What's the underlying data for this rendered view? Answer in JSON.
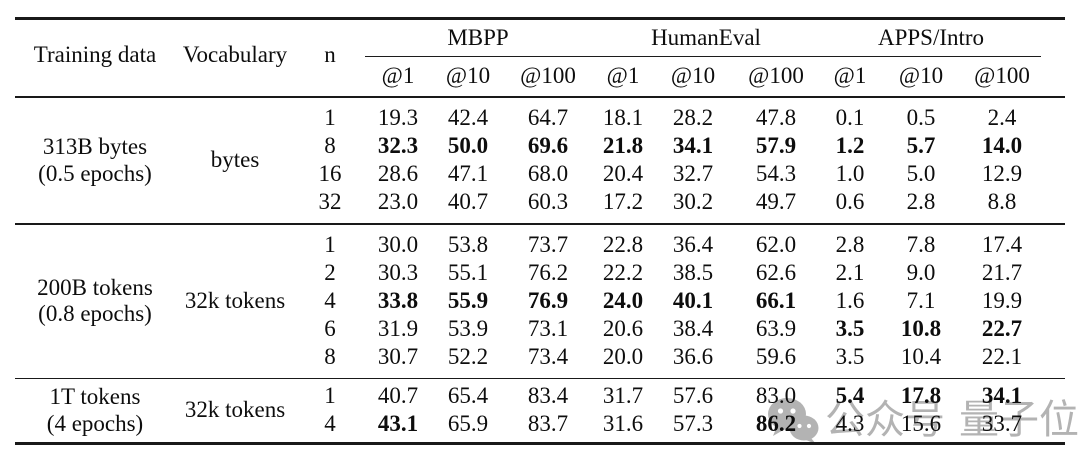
{
  "table": {
    "header": {
      "training_data": "Training data",
      "vocabulary": "Vocabulary",
      "n": "n",
      "benchmarks": [
        {
          "name": "MBPP",
          "metrics": [
            "@1",
            "@10",
            "@100"
          ]
        },
        {
          "name": "HumanEval",
          "metrics": [
            "@1",
            "@10",
            "@100"
          ]
        },
        {
          "name": "APPS/Intro",
          "metrics": [
            "@1",
            "@10",
            "@100"
          ]
        }
      ]
    },
    "groups": [
      {
        "training_data": [
          "313B bytes",
          "(0.5 epochs)"
        ],
        "vocabulary": "bytes",
        "rows": [
          {
            "n": "1",
            "values": [
              "19.3",
              "42.4",
              "64.7",
              "18.1",
              "28.2",
              "47.8",
              "0.1",
              "0.5",
              "2.4"
            ],
            "bold": []
          },
          {
            "n": "8",
            "values": [
              "32.3",
              "50.0",
              "69.6",
              "21.8",
              "34.1",
              "57.9",
              "1.2",
              "5.7",
              "14.0"
            ],
            "bold": [
              0,
              1,
              2,
              3,
              4,
              5,
              6,
              7,
              8
            ]
          },
          {
            "n": "16",
            "values": [
              "28.6",
              "47.1",
              "68.0",
              "20.4",
              "32.7",
              "54.3",
              "1.0",
              "5.0",
              "12.9"
            ],
            "bold": []
          },
          {
            "n": "32",
            "values": [
              "23.0",
              "40.7",
              "60.3",
              "17.2",
              "30.2",
              "49.7",
              "0.6",
              "2.8",
              "8.8"
            ],
            "bold": []
          }
        ]
      },
      {
        "training_data": [
          "200B tokens",
          "(0.8 epochs)"
        ],
        "vocabulary": "32k tokens",
        "rows": [
          {
            "n": "1",
            "values": [
              "30.0",
              "53.8",
              "73.7",
              "22.8",
              "36.4",
              "62.0",
              "2.8",
              "7.8",
              "17.4"
            ],
            "bold": []
          },
          {
            "n": "2",
            "values": [
              "30.3",
              "55.1",
              "76.2",
              "22.2",
              "38.5",
              "62.6",
              "2.1",
              "9.0",
              "21.7"
            ],
            "bold": []
          },
          {
            "n": "4",
            "values": [
              "33.8",
              "55.9",
              "76.9",
              "24.0",
              "40.1",
              "66.1",
              "1.6",
              "7.1",
              "19.9"
            ],
            "bold": [
              0,
              1,
              2,
              3,
              4,
              5
            ]
          },
          {
            "n": "6",
            "values": [
              "31.9",
              "53.9",
              "73.1",
              "20.6",
              "38.4",
              "63.9",
              "3.5",
              "10.8",
              "22.7"
            ],
            "bold": [
              6,
              7,
              8
            ]
          },
          {
            "n": "8",
            "values": [
              "30.7",
              "52.2",
              "73.4",
              "20.0",
              "36.6",
              "59.6",
              "3.5",
              "10.4",
              "22.1"
            ],
            "bold": []
          }
        ]
      },
      {
        "training_data": [
          "1T tokens",
          "(4 epochs)"
        ],
        "vocabulary": "32k tokens",
        "rows": [
          {
            "n": "1",
            "values": [
              "40.7",
              "65.4",
              "83.4",
              "31.7",
              "57.6",
              "83.0",
              "5.4",
              "17.8",
              "34.1"
            ],
            "bold": [
              6,
              7,
              8
            ]
          },
          {
            "n": "4",
            "values": [
              "43.1",
              "65.9",
              "83.7",
              "31.6",
              "57.3",
              "86.2",
              "4.3",
              "15.6",
              "33.7"
            ],
            "bold": [
              0,
              5
            ]
          }
        ]
      }
    ]
  },
  "watermark": {
    "icon": "wechat-icon",
    "account_type_label": "公众号",
    "account_name": "量子位",
    "color": "#b3b3b3"
  }
}
